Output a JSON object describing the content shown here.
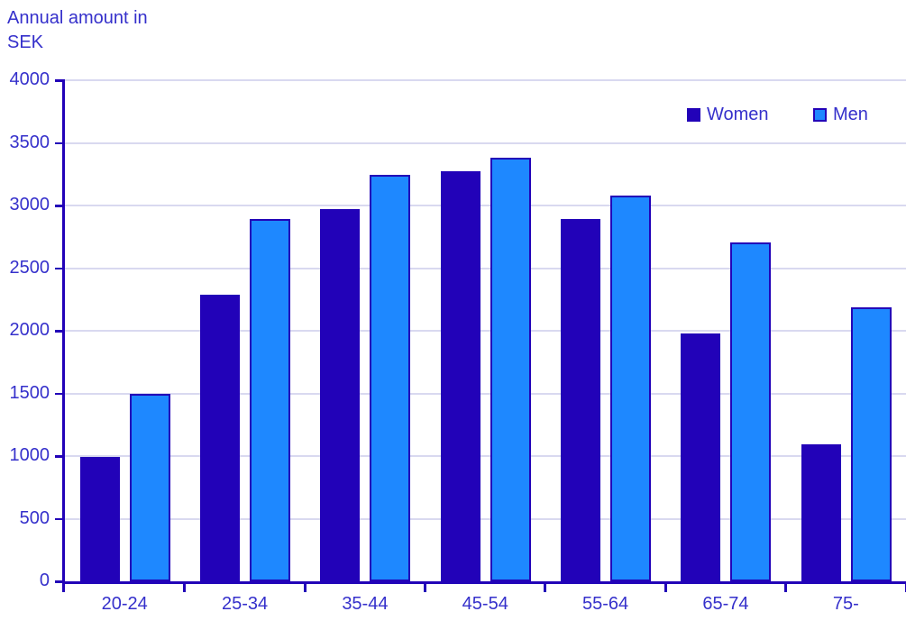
{
  "chart_data": {
    "type": "bar",
    "title": "Annual amount in SEK",
    "categories": [
      "20-24",
      "25-34",
      "35-44",
      "45-54",
      "55-64",
      "65-74",
      "75-"
    ],
    "series": [
      {
        "name": "Women",
        "color": "#2202b8",
        "values": [
          990,
          2290,
          2970,
          3275,
          2890,
          1975,
          1090
        ]
      },
      {
        "name": "Men",
        "color": "#1e88ff",
        "border_color": "#2202b8",
        "values": [
          1500,
          2890,
          3245,
          3380,
          3080,
          2705,
          2185
        ]
      }
    ],
    "xlabel": "",
    "ylabel": "Annual amount in SEK",
    "ylim": [
      0,
      4000
    ],
    "ytick_step": 500,
    "ytick_labels": [
      "0",
      "500",
      "1000",
      "1500",
      "2000",
      "2500",
      "3000",
      "3500",
      "4000"
    ],
    "grid": true,
    "legend_position": "top-right",
    "colors": {
      "axis": "#2202b8",
      "gridline": "#d9d9f0",
      "text": "#3530cb",
      "background": "#ffffff"
    }
  }
}
